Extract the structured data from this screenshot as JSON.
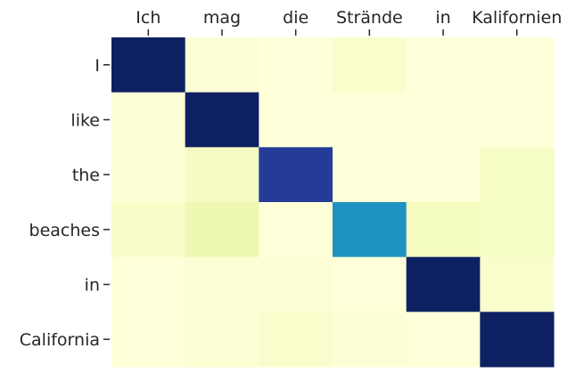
{
  "chart_data": {
    "type": "heatmap",
    "title": "",
    "xlabel": "",
    "ylabel": "",
    "x_labels": [
      "Ich",
      "mag",
      "die",
      "Strände",
      "in",
      "Kalifornien"
    ],
    "y_labels": [
      "I",
      "like",
      "the",
      "beaches",
      "in",
      "California"
    ],
    "x_axis_position": "top",
    "colormap": "YlGnBu",
    "value_range": [
      0,
      1
    ],
    "colorbar": false,
    "grid": false,
    "values": [
      [
        0.98,
        0.01,
        0.0,
        0.04,
        0.0,
        0.0
      ],
      [
        0.01,
        0.98,
        0.0,
        0.0,
        0.0,
        0.0
      ],
      [
        0.02,
        0.07,
        0.85,
        0.0,
        0.0,
        0.06
      ],
      [
        0.05,
        0.12,
        0.0,
        0.62,
        0.08,
        0.06
      ],
      [
        0.0,
        0.02,
        0.01,
        0.0,
        0.98,
        0.04
      ],
      [
        0.0,
        0.02,
        0.04,
        0.01,
        0.0,
        0.98
      ]
    ]
  }
}
